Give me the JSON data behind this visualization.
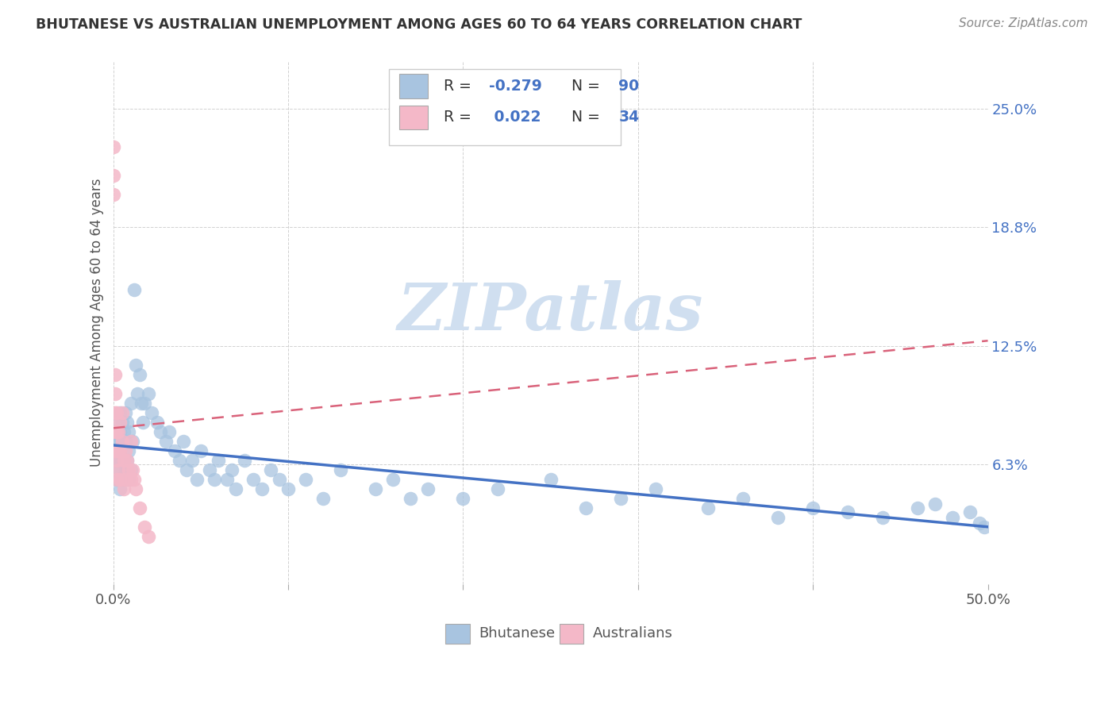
{
  "title": "BHUTANESE VS AUSTRALIAN UNEMPLOYMENT AMONG AGES 60 TO 64 YEARS CORRELATION CHART",
  "source": "Source: ZipAtlas.com",
  "ylabel": "Unemployment Among Ages 60 to 64 years",
  "xlim": [
    0.0,
    0.5
  ],
  "ylim": [
    0.0,
    0.275
  ],
  "yticks": [
    0.0,
    0.063,
    0.125,
    0.188,
    0.25
  ],
  "ytick_labels": [
    "",
    "6.3%",
    "12.5%",
    "18.8%",
    "25.0%"
  ],
  "blue_color": "#a8c4e0",
  "blue_line": "#4472c4",
  "pink_color": "#f4b8c8",
  "pink_line": "#d9627a",
  "watermark_color": "#d0dff0",
  "bhutanese_x": [
    0.001,
    0.001,
    0.001,
    0.002,
    0.002,
    0.002,
    0.002,
    0.003,
    0.003,
    0.003,
    0.003,
    0.004,
    0.004,
    0.004,
    0.004,
    0.004,
    0.005,
    0.005,
    0.005,
    0.005,
    0.006,
    0.006,
    0.007,
    0.007,
    0.007,
    0.008,
    0.008,
    0.009,
    0.009,
    0.009,
    0.01,
    0.01,
    0.011,
    0.012,
    0.013,
    0.014,
    0.015,
    0.016,
    0.017,
    0.018,
    0.02,
    0.022,
    0.025,
    0.027,
    0.03,
    0.032,
    0.035,
    0.038,
    0.04,
    0.042,
    0.045,
    0.048,
    0.05,
    0.055,
    0.058,
    0.06,
    0.065,
    0.068,
    0.07,
    0.075,
    0.08,
    0.085,
    0.09,
    0.095,
    0.1,
    0.11,
    0.12,
    0.13,
    0.15,
    0.16,
    0.17,
    0.18,
    0.2,
    0.22,
    0.25,
    0.27,
    0.29,
    0.31,
    0.34,
    0.36,
    0.38,
    0.4,
    0.42,
    0.44,
    0.46,
    0.47,
    0.48,
    0.49,
    0.495,
    0.498
  ],
  "bhutanese_y": [
    0.075,
    0.065,
    0.06,
    0.08,
    0.07,
    0.065,
    0.055,
    0.085,
    0.075,
    0.065,
    0.055,
    0.09,
    0.08,
    0.07,
    0.06,
    0.05,
    0.085,
    0.075,
    0.065,
    0.055,
    0.08,
    0.065,
    0.09,
    0.075,
    0.06,
    0.085,
    0.065,
    0.08,
    0.07,
    0.055,
    0.095,
    0.06,
    0.075,
    0.155,
    0.115,
    0.1,
    0.11,
    0.095,
    0.085,
    0.095,
    0.1,
    0.09,
    0.085,
    0.08,
    0.075,
    0.08,
    0.07,
    0.065,
    0.075,
    0.06,
    0.065,
    0.055,
    0.07,
    0.06,
    0.055,
    0.065,
    0.055,
    0.06,
    0.05,
    0.065,
    0.055,
    0.05,
    0.06,
    0.055,
    0.05,
    0.055,
    0.045,
    0.06,
    0.05,
    0.055,
    0.045,
    0.05,
    0.045,
    0.05,
    0.055,
    0.04,
    0.045,
    0.05,
    0.04,
    0.045,
    0.035,
    0.04,
    0.038,
    0.035,
    0.04,
    0.042,
    0.035,
    0.038,
    0.032,
    0.03
  ],
  "australian_x": [
    0.0,
    0.0,
    0.0,
    0.001,
    0.001,
    0.001,
    0.001,
    0.001,
    0.002,
    0.002,
    0.002,
    0.002,
    0.003,
    0.003,
    0.003,
    0.004,
    0.004,
    0.004,
    0.005,
    0.005,
    0.006,
    0.006,
    0.007,
    0.007,
    0.008,
    0.009,
    0.01,
    0.01,
    0.011,
    0.012,
    0.013,
    0.015,
    0.018,
    0.02
  ],
  "australian_y": [
    0.23,
    0.215,
    0.205,
    0.11,
    0.1,
    0.09,
    0.08,
    0.07,
    0.09,
    0.08,
    0.065,
    0.055,
    0.08,
    0.07,
    0.06,
    0.085,
    0.07,
    0.055,
    0.09,
    0.075,
    0.065,
    0.05,
    0.07,
    0.055,
    0.065,
    0.06,
    0.075,
    0.055,
    0.06,
    0.055,
    0.05,
    0.04,
    0.03,
    0.025
  ],
  "trend_blue_x0": 0.0,
  "trend_blue_y0": 0.073,
  "trend_blue_x1": 0.5,
  "trend_blue_y1": 0.03,
  "trend_pink_x0": 0.0,
  "trend_pink_y0": 0.082,
  "trend_pink_x1": 0.5,
  "trend_pink_y1": 0.128
}
